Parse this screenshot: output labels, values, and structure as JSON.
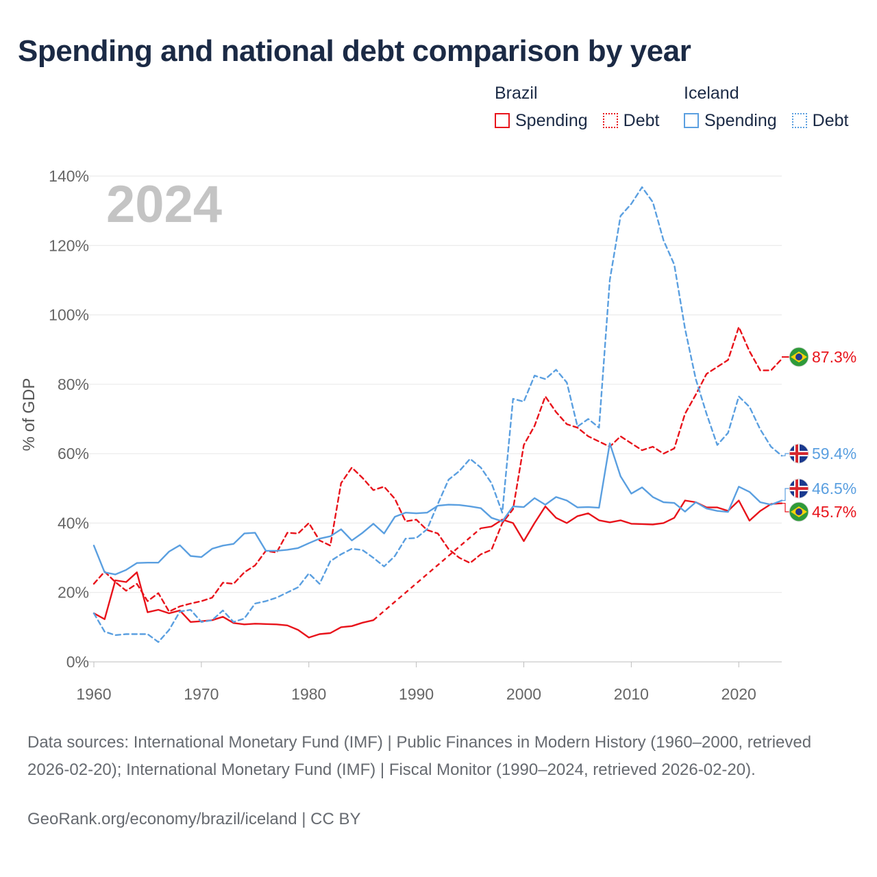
{
  "title": "Spending and national debt comparison by year",
  "legend": {
    "countries": [
      {
        "name": "Brazil",
        "spending_label": "Spending",
        "debt_label": "Debt",
        "color": "#e8131b"
      },
      {
        "name": "Iceland",
        "spending_label": "Spending",
        "debt_label": "Debt",
        "color": "#5a9fe0"
      }
    ]
  },
  "footer": {
    "source": "Data sources: International Monetary Fund (IMF) | Public Finances in Modern History (1960–2000, retrieved 2026-02-20); International Monetary Fund (IMF) | Fiscal Monitor (1990–2024, retrieved 2026-02-20).",
    "credit": "GeoRank.org/economy/brazil/iceland | CC BY"
  },
  "chart_data": {
    "type": "line",
    "title": "Spending and national debt comparison by year",
    "ylabel": "% of GDP",
    "xlabel": "",
    "year_watermark": "2024",
    "xlim": [
      1960,
      2024
    ],
    "ylim": [
      0,
      140
    ],
    "x_ticks": [
      "1960",
      "1970",
      "1980",
      "1990",
      "2000",
      "2010",
      "2020"
    ],
    "y_ticks": [
      "0%",
      "20%",
      "40%",
      "60%",
      "80%",
      "100%",
      "120%",
      "140%"
    ],
    "start_year": 1960,
    "series": [
      {
        "name": "Brazil Debt",
        "country": "Brazil",
        "kind": "debt",
        "color": "#e8131b",
        "end_label": "87.3%",
        "end_value": 87.3,
        "values": [
          22.5,
          26,
          23,
          20.5,
          22.5,
          17.5,
          19.8,
          14.5,
          16,
          16.8,
          17.5,
          18.5,
          22.8,
          22.5,
          25.8,
          27.8,
          32,
          31.5,
          37.2,
          37,
          40,
          35,
          33.5,
          51.5,
          56,
          53,
          49.5,
          50.5,
          47,
          40.5,
          41,
          38,
          37,
          32.5,
          30,
          28.5,
          31,
          32.3,
          40,
          44,
          62.5,
          68,
          76.5,
          72,
          68.5,
          67.5,
          65,
          63.5,
          62,
          65,
          63,
          61,
          62,
          60,
          61.5,
          71.5,
          77,
          83,
          85,
          87,
          96.5,
          89.5,
          84,
          84,
          87.3
        ]
      },
      {
        "name": "Brazil Spending",
        "country": "Brazil",
        "kind": "spending",
        "color": "#e8131b",
        "end_label": "45.7%",
        "end_value": 45.7,
        "values": [
          14,
          12.3,
          23.5,
          23,
          25.8,
          14.3,
          15,
          14,
          14.8,
          11.5,
          11.7,
          12,
          13,
          11.2,
          10.8,
          11,
          10.9,
          10.8,
          10.5,
          9.2,
          7,
          8,
          8.3,
          10,
          10.3,
          11.3,
          12,
          null,
          null,
          null,
          null,
          null,
          null,
          null,
          null,
          null,
          38.5,
          39,
          41,
          40,
          34.8,
          40,
          44.8,
          41.5,
          40,
          42,
          42.8,
          40.8,
          40.2,
          40.8,
          39.8,
          39.7,
          39.6,
          40,
          41.5,
          46.5,
          46,
          44.5,
          44.5,
          43.5,
          46.5,
          40.7,
          43.5,
          45.5,
          45.7
        ]
      },
      {
        "name": "Iceland Debt",
        "country": "Iceland",
        "kind": "debt",
        "color": "#5a9fe0",
        "end_label": "59.4%",
        "end_value": 59.4,
        "values": [
          14,
          8.7,
          7.7,
          8,
          8,
          8,
          5.7,
          9.2,
          14.5,
          15,
          11.5,
          12,
          14.8,
          11.5,
          12.5,
          16.8,
          17.5,
          18.5,
          20,
          21.5,
          25.5,
          22.5,
          29,
          31,
          32.6,
          32.2,
          30,
          27.5,
          30.5,
          35.5,
          35.7,
          38.2,
          45.5,
          52.5,
          55,
          58.5,
          56,
          51.5,
          43,
          75.8,
          75,
          82.5,
          81.5,
          84.2,
          80.5,
          67.8,
          70,
          67.5,
          110,
          128.5,
          132,
          136.8,
          132.5,
          121.5,
          114.5,
          96,
          81.5,
          71.5,
          62.5,
          66,
          76.5,
          73.5,
          67,
          62,
          59.4
        ]
      },
      {
        "name": "Iceland Spending",
        "country": "Iceland",
        "kind": "spending",
        "color": "#5a9fe0",
        "end_label": "46.5%",
        "end_value": 46.5,
        "values": [
          33.5,
          25.8,
          25.2,
          26.5,
          28.5,
          28.6,
          28.6,
          31.8,
          33.6,
          30.5,
          30.2,
          32.6,
          33.5,
          34,
          37,
          37.2,
          32,
          32,
          32.3,
          32.8,
          34.2,
          35.5,
          36.2,
          38.2,
          35,
          37.2,
          39.8,
          37,
          41.8,
          43,
          42.8,
          43,
          45,
          45.3,
          45.2,
          44.8,
          44.3,
          41.5,
          40.5,
          44.8,
          44.6,
          47.2,
          45.3,
          47.5,
          46.5,
          44.5,
          44.6,
          44.4,
          63,
          53.5,
          48.5,
          50.3,
          47.5,
          46,
          45.8,
          43.3,
          46,
          44.2,
          43.5,
          43.2,
          50.5,
          49,
          46,
          45.3,
          46.5
        ]
      }
    ]
  }
}
